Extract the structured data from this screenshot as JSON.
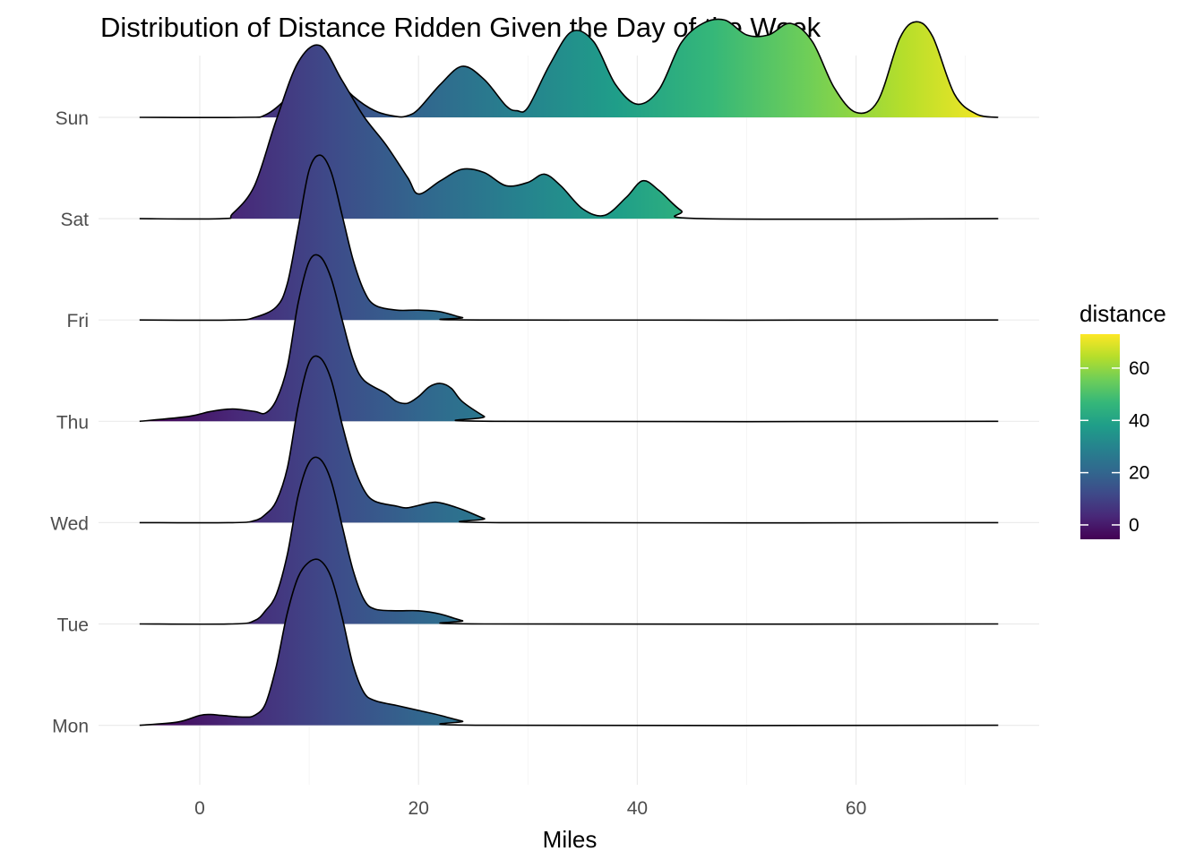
{
  "chart_data": {
    "type": "ridgeline",
    "title": "Distribution of Distance Ridden Given the Day of the Week",
    "xlabel": "Miles",
    "ylabel": "",
    "xlim": [
      -5.5,
      73
    ],
    "xticks": [
      0,
      20,
      40,
      60
    ],
    "categories": [
      "Sun",
      "Sat",
      "Fri",
      "Thu",
      "Wed",
      "Tue",
      "Mon"
    ],
    "fill_scale": {
      "name": "distance",
      "palette": "viridis",
      "range": [
        -5.5,
        73
      ],
      "ticks": [
        0,
        20,
        40,
        60
      ],
      "colors": [
        "#440154",
        "#482878",
        "#3e4a89",
        "#31688e",
        "#26828e",
        "#1f9e89",
        "#35b779",
        "#6ece58",
        "#b5de2b",
        "#fde725"
      ]
    },
    "grid": true,
    "series": [
      {
        "name": "Sun",
        "points": [
          [
            -5.5,
            0
          ],
          [
            4,
            0
          ],
          [
            6,
            0.015
          ],
          [
            8,
            0.12
          ],
          [
            10,
            0.28
          ],
          [
            10.8,
            0.31
          ],
          [
            12,
            0.27
          ],
          [
            14,
            0.13
          ],
          [
            16,
            0.04
          ],
          [
            18,
            0.005
          ],
          [
            19,
            0.01
          ],
          [
            20,
            0.05
          ],
          [
            22,
            0.2
          ],
          [
            24,
            0.31
          ],
          [
            26,
            0.23
          ],
          [
            28,
            0.07
          ],
          [
            29,
            0.04
          ],
          [
            30,
            0.06
          ],
          [
            32,
            0.32
          ],
          [
            34,
            0.52
          ],
          [
            36,
            0.46
          ],
          [
            38,
            0.2
          ],
          [
            40,
            0.08
          ],
          [
            42,
            0.17
          ],
          [
            44,
            0.45
          ],
          [
            46,
            0.57
          ],
          [
            48,
            0.59
          ],
          [
            50,
            0.5
          ],
          [
            52,
            0.5
          ],
          [
            54,
            0.57
          ],
          [
            56,
            0.46
          ],
          [
            58,
            0.18
          ],
          [
            60,
            0.03
          ],
          [
            62,
            0.1
          ],
          [
            64,
            0.48
          ],
          [
            65.5,
            0.58
          ],
          [
            67,
            0.49
          ],
          [
            69,
            0.14
          ],
          [
            71,
            0.02
          ],
          [
            73,
            0
          ]
        ]
      },
      {
        "name": "Sat",
        "points": [
          [
            -5.5,
            0
          ],
          [
            2,
            0
          ],
          [
            3,
            0.03
          ],
          [
            5,
            0.2
          ],
          [
            7,
            0.6
          ],
          [
            9,
            0.95
          ],
          [
            11,
            1.05
          ],
          [
            13,
            0.84
          ],
          [
            15,
            0.62
          ],
          [
            17,
            0.45
          ],
          [
            19,
            0.25
          ],
          [
            20,
            0.15
          ],
          [
            22,
            0.23
          ],
          [
            24,
            0.3
          ],
          [
            26,
            0.28
          ],
          [
            28,
            0.2
          ],
          [
            30,
            0.22
          ],
          [
            31.5,
            0.27
          ],
          [
            33,
            0.2
          ],
          [
            35,
            0.06
          ],
          [
            37,
            0.02
          ],
          [
            39,
            0.13
          ],
          [
            40.5,
            0.23
          ],
          [
            42,
            0.17
          ],
          [
            44,
            0.05
          ],
          [
            46,
            0
          ],
          [
            73,
            0
          ]
        ]
      },
      {
        "name": "Fri",
        "points": [
          [
            -5.5,
            0
          ],
          [
            3,
            0
          ],
          [
            5,
            0.015
          ],
          [
            7,
            0.08
          ],
          [
            8,
            0.22
          ],
          [
            9,
            0.56
          ],
          [
            10,
            0.91
          ],
          [
            11,
            1
          ],
          [
            12,
            0.9
          ],
          [
            13,
            0.64
          ],
          [
            14,
            0.37
          ],
          [
            15,
            0.18
          ],
          [
            16,
            0.09
          ],
          [
            18,
            0.06
          ],
          [
            20,
            0.06
          ],
          [
            22,
            0.05
          ],
          [
            24,
            0.015
          ],
          [
            26,
            0
          ],
          [
            73,
            0
          ]
        ]
      },
      {
        "name": "Thu",
        "points": [
          [
            -5.5,
            0
          ],
          [
            -1,
            0.03
          ],
          [
            1,
            0.06
          ],
          [
            3,
            0.075
          ],
          [
            5,
            0.06
          ],
          [
            6,
            0.05
          ],
          [
            7,
            0.13
          ],
          [
            8,
            0.33
          ],
          [
            9,
            0.72
          ],
          [
            10,
            0.97
          ],
          [
            11,
            1
          ],
          [
            12,
            0.87
          ],
          [
            13,
            0.62
          ],
          [
            14,
            0.38
          ],
          [
            15,
            0.25
          ],
          [
            17,
            0.17
          ],
          [
            18,
            0.12
          ],
          [
            19,
            0.11
          ],
          [
            20,
            0.15
          ],
          [
            21,
            0.21
          ],
          [
            22,
            0.23
          ],
          [
            23,
            0.2
          ],
          [
            24,
            0.12
          ],
          [
            26,
            0.03
          ],
          [
            27,
            0
          ],
          [
            73,
            0
          ]
        ]
      },
      {
        "name": "Wed",
        "points": [
          [
            -5.5,
            0
          ],
          [
            3,
            0
          ],
          [
            5,
            0.012
          ],
          [
            6,
            0.05
          ],
          [
            7,
            0.13
          ],
          [
            8,
            0.33
          ],
          [
            9,
            0.71
          ],
          [
            10,
            0.97
          ],
          [
            11,
            1
          ],
          [
            12,
            0.87
          ],
          [
            13,
            0.6
          ],
          [
            14,
            0.36
          ],
          [
            15,
            0.2
          ],
          [
            16,
            0.13
          ],
          [
            18,
            0.1
          ],
          [
            19,
            0.09
          ],
          [
            21,
            0.12
          ],
          [
            22,
            0.12
          ],
          [
            24,
            0.08
          ],
          [
            26,
            0.025
          ],
          [
            27.5,
            0
          ],
          [
            73,
            0
          ]
        ]
      },
      {
        "name": "Tue",
        "points": [
          [
            -5.5,
            0
          ],
          [
            3,
            0
          ],
          [
            5,
            0.02
          ],
          [
            6,
            0.08
          ],
          [
            7,
            0.18
          ],
          [
            8,
            0.42
          ],
          [
            9,
            0.78
          ],
          [
            10,
            0.98
          ],
          [
            11,
            1
          ],
          [
            12,
            0.87
          ],
          [
            13,
            0.6
          ],
          [
            14,
            0.33
          ],
          [
            15,
            0.15
          ],
          [
            16,
            0.09
          ],
          [
            18,
            0.08
          ],
          [
            20,
            0.08
          ],
          [
            22,
            0.06
          ],
          [
            24,
            0.02
          ],
          [
            26,
            0
          ],
          [
            73,
            0
          ]
        ]
      },
      {
        "name": "Mon",
        "points": [
          [
            -5.5,
            0
          ],
          [
            -2,
            0.02
          ],
          [
            0,
            0.06
          ],
          [
            1,
            0.065
          ],
          [
            2,
            0.06
          ],
          [
            4,
            0.05
          ],
          [
            5,
            0.06
          ],
          [
            6,
            0.13
          ],
          [
            7,
            0.36
          ],
          [
            8,
            0.68
          ],
          [
            9,
            0.9
          ],
          [
            10,
            0.99
          ],
          [
            11,
            1
          ],
          [
            12,
            0.9
          ],
          [
            13,
            0.66
          ],
          [
            14,
            0.37
          ],
          [
            15,
            0.2
          ],
          [
            16,
            0.15
          ],
          [
            18,
            0.12
          ],
          [
            20,
            0.09
          ],
          [
            22,
            0.06
          ],
          [
            24,
            0.025
          ],
          [
            26,
            0
          ],
          [
            73,
            0
          ]
        ]
      }
    ]
  }
}
